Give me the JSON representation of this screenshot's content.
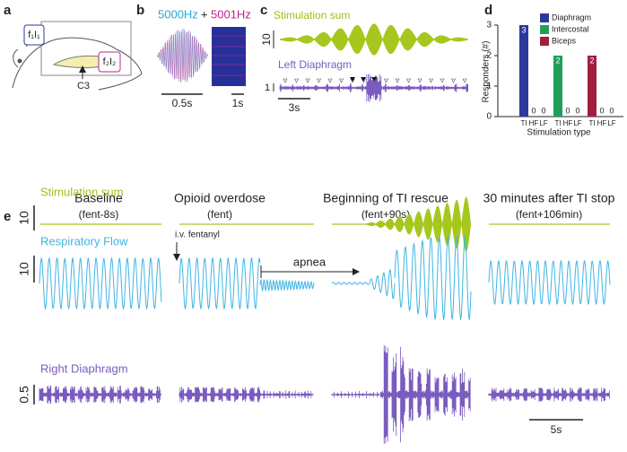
{
  "panel_a": {
    "letter": "a",
    "site1": "f₁I₁",
    "site2": "f₂I₂",
    "spine": "C3"
  },
  "panel_b": {
    "letter": "b",
    "freq1": "5000Hz",
    "plus": "+",
    "freq2": "5001Hz",
    "scale1": "0.5s",
    "scale2": "1s"
  },
  "panel_c": {
    "letter": "c",
    "trace1": "Stimulation sum",
    "scale1": "10",
    "trace2": "Left Diaphragm",
    "scale2": "1",
    "time": "3s"
  },
  "chart_data": {
    "type": "bar",
    "letter": "d",
    "y_label": "Responders (#)",
    "x_label": "Stimulation type",
    "categories": [
      "TI",
      "HF",
      "LF"
    ],
    "series": [
      {
        "name": "Diaphragm",
        "color": "#2b3a9a",
        "values": [
          3,
          0,
          0
        ]
      },
      {
        "name": "Intercostal",
        "color": "#1fa05a",
        "values": [
          2,
          0,
          0
        ]
      },
      {
        "name": "Biceps",
        "color": "#a31d3f",
        "values": [
          2,
          0,
          0
        ]
      }
    ],
    "ylim": [
      0,
      3
    ],
    "yticks": [
      0,
      1,
      2,
      3
    ],
    "legend": "top-right"
  },
  "panel_e": {
    "letter": "e",
    "columns": [
      {
        "title": "Baseline",
        "subtitle": "(fent-8s)"
      },
      {
        "title": "Opioid overdose",
        "subtitle": "(fent)"
      },
      {
        "title": "Beginning of TI rescue",
        "subtitle": "(fent+90s)"
      },
      {
        "title": "30 minutes after TI stop",
        "subtitle": "(fent+106min)"
      }
    ],
    "traces": [
      {
        "name": "Stimulation sum",
        "scale": "10"
      },
      {
        "name": "Respiratory Flow",
        "scale": "10"
      },
      {
        "name": "Right Diaphragm",
        "scale": "0.5"
      }
    ],
    "annotation_drug": "i.v. fentanyl",
    "annotation_apnea": "apnea",
    "time": "5s"
  }
}
